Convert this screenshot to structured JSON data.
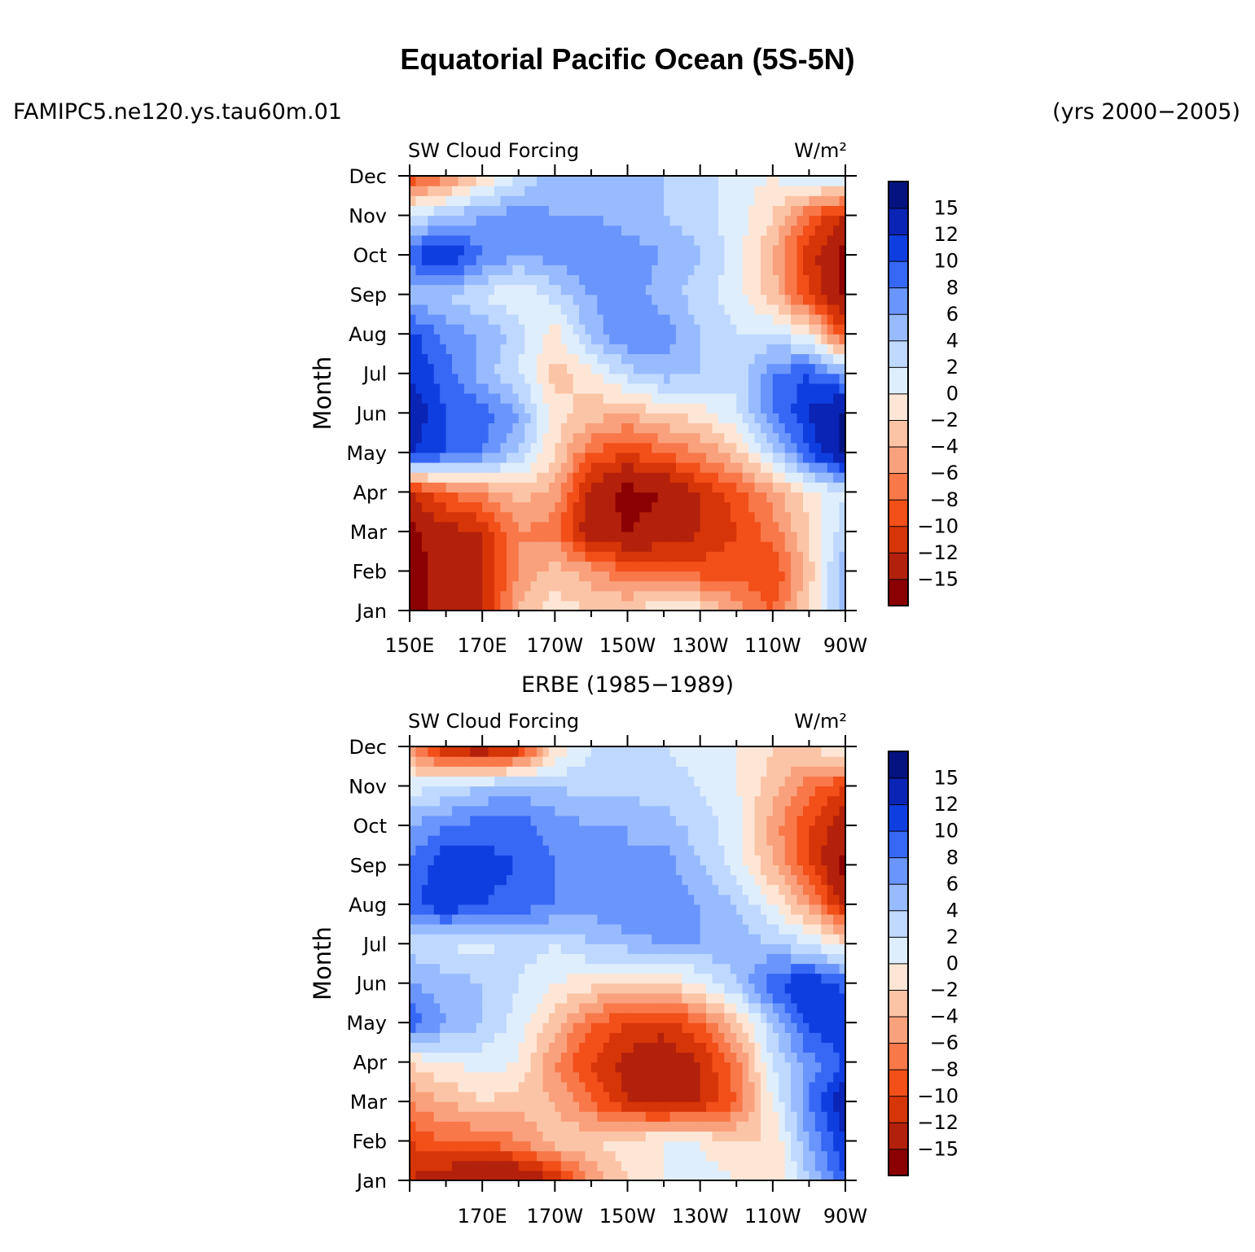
{
  "title": "Equatorial Pacific Ocean (5S-5N)",
  "case_name": "FAMIPC5.ne120.ys.tau60m.01",
  "years": "(yrs 2000−2005)",
  "colorbar": {
    "labels": [
      "15",
      "12",
      "10",
      "8",
      "6",
      "4",
      "2",
      "0",
      "−2",
      "−4",
      "−6",
      "−8",
      "−10",
      "−12",
      "−15"
    ],
    "colors": [
      "#8b0000",
      "#b3200b",
      "#d63508",
      "#f24f19",
      "#f8784a",
      "#f9a17c",
      "#fcc4a6",
      "#fde6d5",
      "#dfeefc",
      "#bfd8ff",
      "#98bbff",
      "#6a95fc",
      "#3668f5",
      "#0f3ee0",
      "#0a24b5",
      "#04137f"
    ]
  },
  "chart_data": [
    {
      "type": "heatmap",
      "panel_title": "",
      "left_label": "SW Cloud Forcing",
      "right_label": "W/m²",
      "xlabel": "",
      "ylabel": "Month",
      "x_tick_labels": [
        "150E",
        "170E",
        "170W",
        "150W",
        "130W",
        "110W",
        "90W"
      ],
      "y_tick_labels": [
        "Jan",
        "Feb",
        "Mar",
        "Apr",
        "May",
        "Jun",
        "Jul",
        "Aug",
        "Sep",
        "Oct",
        "Nov",
        "Dec"
      ],
      "x_range_deg_east": [
        150,
        270
      ],
      "units": "W/m²",
      "levels": [
        -15,
        -12,
        -10,
        -8,
        -6,
        -4,
        -2,
        0,
        2,
        4,
        6,
        8,
        10,
        12,
        15
      ],
      "longitudes": [
        150,
        160,
        170,
        180,
        190,
        200,
        210,
        220,
        230,
        240,
        250,
        260,
        270
      ],
      "values": [
        [
          -16,
          -14,
          -12,
          -4,
          -1,
          -2,
          -2,
          0,
          -1,
          -5,
          -8,
          -2,
          6
        ],
        [
          -16,
          -14,
          -12,
          -6,
          -3,
          -5,
          -8,
          -8,
          -9,
          -9,
          -10,
          -3,
          6
        ],
        [
          -16,
          -13,
          -12,
          -6,
          -7,
          -14,
          -15,
          -14,
          -12,
          -10,
          -7,
          -2,
          3
        ],
        [
          -12,
          -8,
          -6,
          -3,
          -5,
          -13,
          -16,
          -15,
          -12,
          -9,
          -5,
          -1,
          2
        ],
        [
          12,
          10,
          8,
          4,
          -2,
          -8,
          -10,
          -8,
          -6,
          -3,
          3,
          10,
          16
        ],
        [
          14,
          10,
          9,
          6,
          -1,
          -3,
          -4,
          -2,
          -1,
          2,
          8,
          12,
          16
        ],
        [
          12,
          9,
          5,
          2,
          -3,
          -1,
          3,
          5,
          4,
          2,
          8,
          10,
          6
        ],
        [
          11,
          7,
          6,
          3,
          -1,
          5,
          8,
          7,
          4,
          2,
          2,
          0,
          -10
        ],
        [
          4,
          4,
          2,
          0,
          3,
          6,
          7,
          5,
          3,
          1,
          -3,
          -10,
          -16
        ],
        [
          10,
          13,
          8,
          6,
          7,
          8,
          7,
          6,
          4,
          1,
          -4,
          -11,
          -16
        ],
        [
          2,
          4,
          6,
          7,
          6,
          6,
          5,
          4,
          3,
          1,
          -2,
          -8,
          -12
        ],
        [
          -10,
          -7,
          -2,
          2,
          5,
          6,
          6,
          4,
          3,
          1,
          0,
          2,
          3
        ]
      ]
    },
    {
      "type": "heatmap",
      "panel_title": "ERBE (1985−1989)",
      "left_label": "SW Cloud Forcing",
      "right_label": "W/m²",
      "xlabel": "",
      "ylabel": "Month",
      "x_tick_labels": [
        "170E",
        "170W",
        "150W",
        "130W",
        "110W",
        "90W"
      ],
      "y_tick_labels": [
        "Jan",
        "Feb",
        "Mar",
        "Apr",
        "May",
        "Jun",
        "Jul",
        "Aug",
        "Sep",
        "Oct",
        "Nov",
        "Dec"
      ],
      "x_range_deg_east": [
        150,
        270
      ],
      "units": "W/m²",
      "levels": [
        -15,
        -12,
        -10,
        -8,
        -6,
        -4,
        -2,
        0,
        2,
        4,
        6,
        8,
        10,
        12,
        15
      ],
      "longitudes": [
        150,
        160,
        170,
        180,
        190,
        200,
        210,
        220,
        230,
        240,
        250,
        260,
        270
      ],
      "values": [
        [
          -12,
          -14,
          -16,
          -16,
          -12,
          -6,
          -2,
          0,
          1,
          0,
          -2,
          4,
          10
        ],
        [
          -10,
          -8,
          -8,
          -6,
          -3,
          -2,
          -1,
          0,
          0,
          -2,
          -2,
          6,
          12
        ],
        [
          -6,
          -4,
          -2,
          -3,
          -4,
          -8,
          -12,
          -13,
          -12,
          -8,
          0,
          8,
          14
        ],
        [
          -2,
          0,
          1,
          0,
          -6,
          -10,
          -13,
          -14,
          -12,
          -7,
          2,
          7,
          10
        ],
        [
          10,
          6,
          4,
          1,
          -3,
          -8,
          -10,
          -11,
          -8,
          -3,
          4,
          11,
          12
        ],
        [
          6,
          5,
          4,
          2,
          0,
          -1,
          -3,
          -2,
          0,
          4,
          10,
          12,
          9
        ],
        [
          3,
          2,
          1,
          3,
          2,
          4,
          5,
          6,
          6,
          5,
          4,
          2,
          -1
        ],
        [
          9,
          12,
          10,
          9,
          8,
          7,
          8,
          8,
          6,
          4,
          0,
          -5,
          -13
        ],
        [
          8,
          12,
          11,
          10,
          8,
          7,
          6,
          7,
          4,
          1,
          -4,
          -10,
          -16
        ],
        [
          6,
          8,
          9,
          9,
          7,
          6,
          6,
          5,
          3,
          1,
          -5,
          -10,
          -14
        ],
        [
          1,
          2,
          4,
          5,
          4,
          3,
          3,
          3,
          2,
          0,
          -3,
          -7,
          -10
        ],
        [
          -6,
          -13,
          -15,
          -12,
          -2,
          2,
          3,
          2,
          1,
          0,
          -2,
          -2,
          1
        ]
      ]
    }
  ]
}
